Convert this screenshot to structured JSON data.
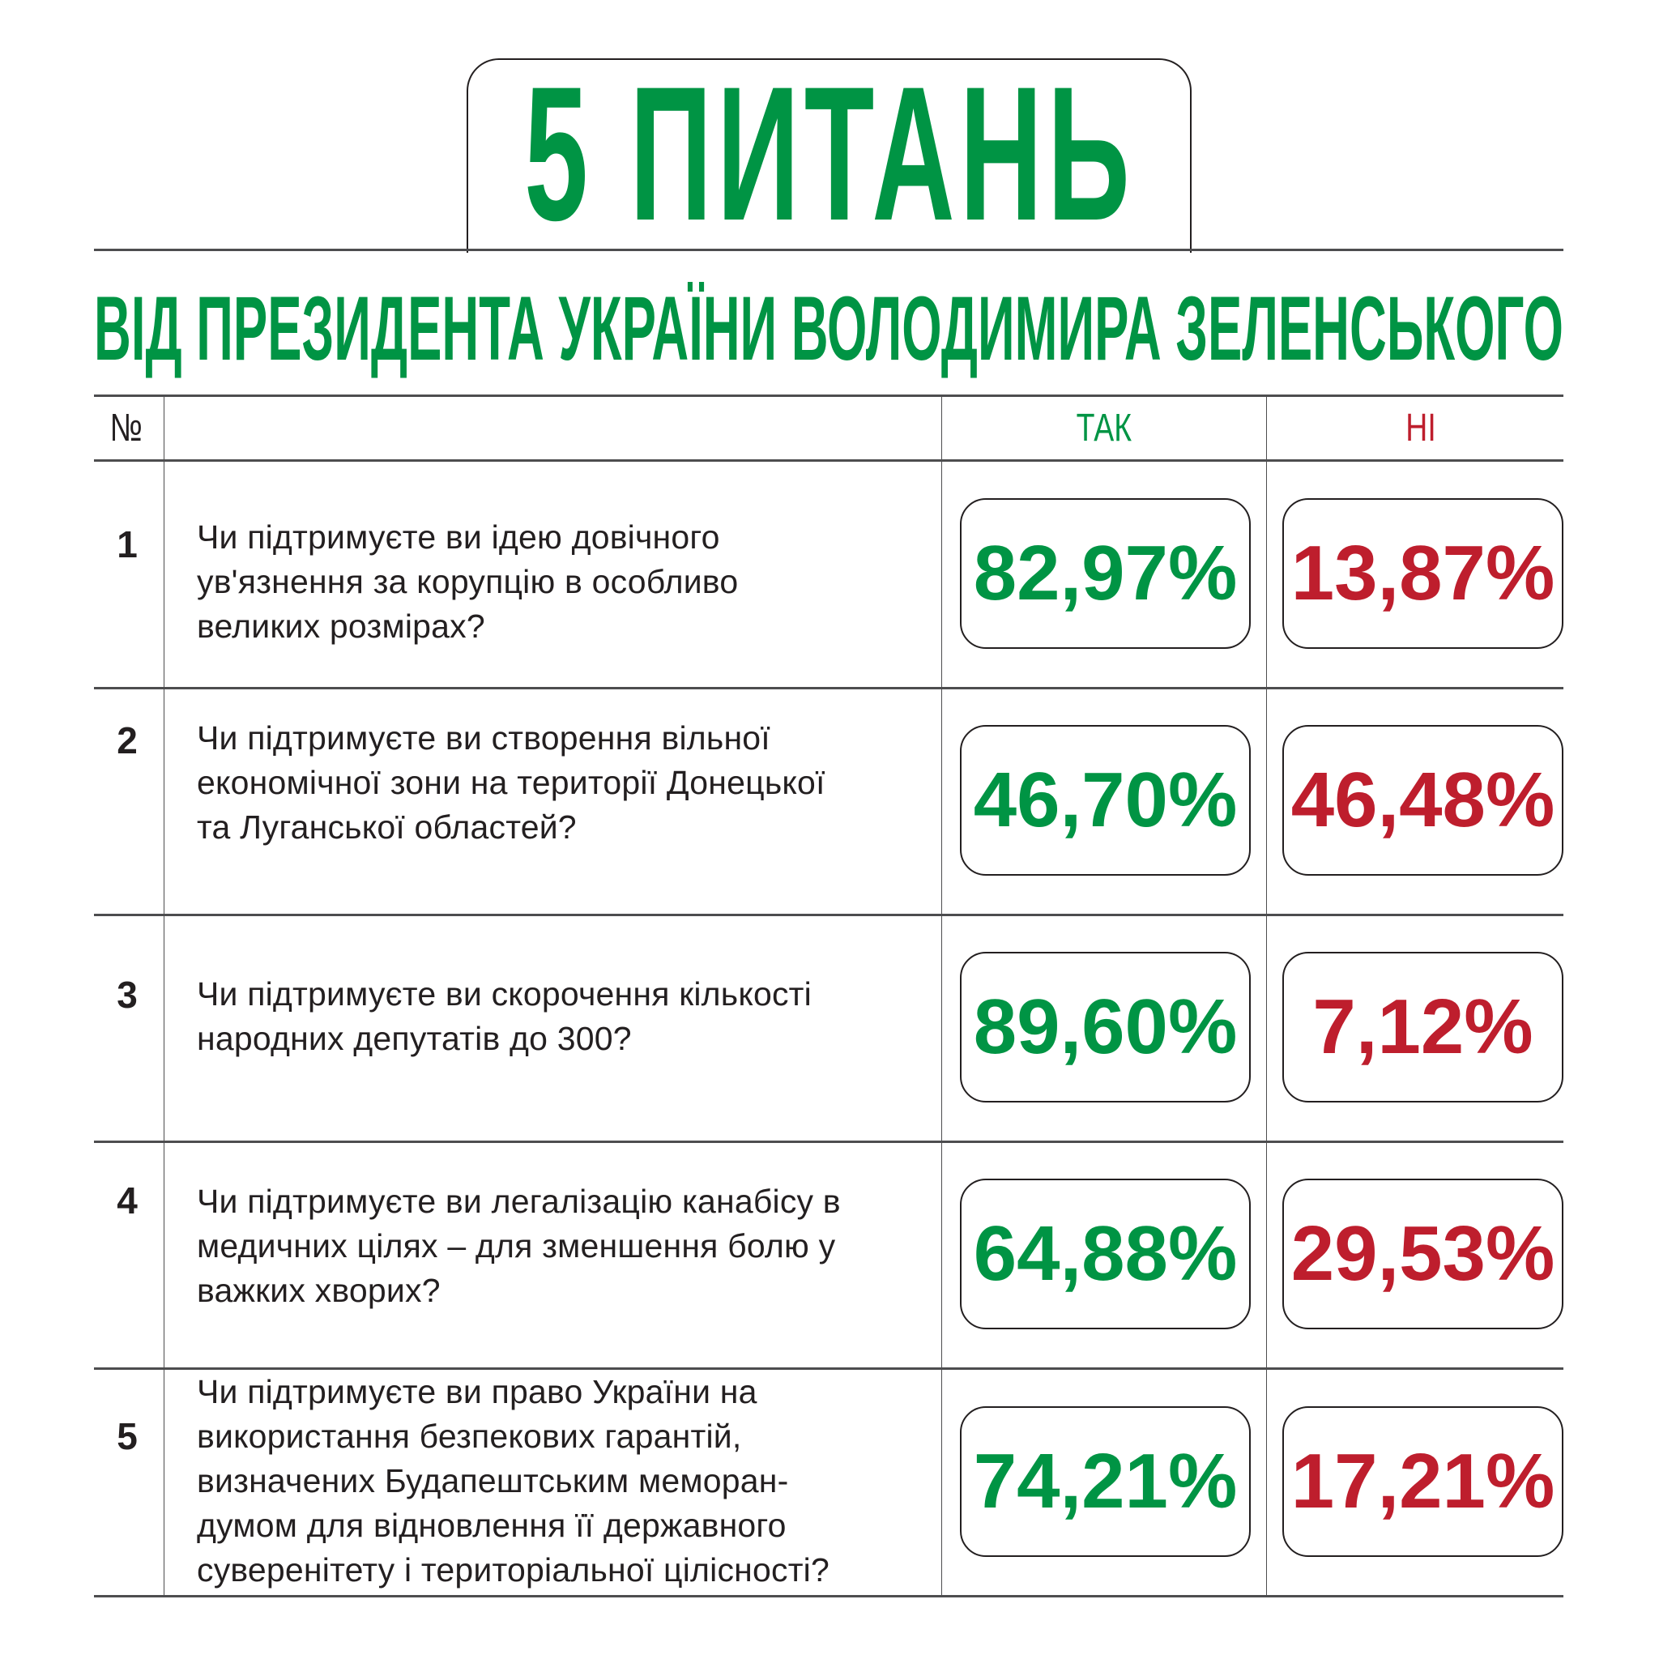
{
  "header": {
    "title": "5 ПИТАНЬ",
    "subtitle": "ВІД ПРЕЗИДЕНТА УКРАЇНИ ВОЛОДИМИРА ЗЕЛЕНСЬКОГО"
  },
  "colors": {
    "yes": "#009444",
    "no": "#be1e2d",
    "text": "#231f20"
  },
  "table": {
    "col_number": "№",
    "col_yes": "ТАК",
    "col_no": "НІ",
    "rows": [
      {
        "num": "1",
        "lines": [
          "Чи підтримуєте ви ідею довічного",
          "ув'язнення за корупцію в особливо",
          "великих розмірах?"
        ],
        "yes": "82,97%",
        "no": "13,87%"
      },
      {
        "num": "2",
        "lines": [
          "Чи підтримуєте ви створення вільної",
          "економічної зони на території Донецької",
          "та Луганської областей?"
        ],
        "yes": "46,70%",
        "no": "46,48%"
      },
      {
        "num": "3",
        "lines": [
          "Чи підтримуєте ви скорочення кількості",
          "народних депутатів до 300?"
        ],
        "yes": "89,60%",
        "no": "7,12%"
      },
      {
        "num": "4",
        "lines": [
          "Чи підтримуєте ви легалізацію канабісу в",
          "медичних цілях – для зменшення болю у",
          "важких хворих?"
        ],
        "yes": "64,88%",
        "no": "29,53%"
      },
      {
        "num": "5",
        "lines": [
          "Чи підтримуєте ви право України на",
          "використання безпекових гарантій,",
          "визначених Будапештським меморан-",
          "думом для відновлення її державного",
          "суверенітету і територіальної цілісності?"
        ],
        "yes": "74,21%",
        "no": "17,21%"
      }
    ]
  }
}
